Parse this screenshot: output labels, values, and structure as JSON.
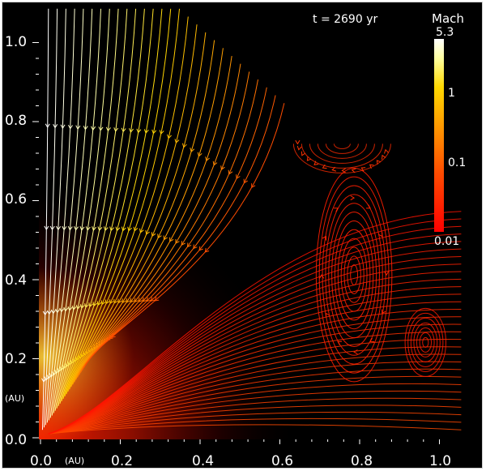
{
  "time_label": "t = 2690 yr",
  "colorbar": {
    "title": "Mach",
    "max_label": "5.3",
    "tick_labels": [
      "1",
      "0.1",
      "0.01"
    ],
    "colors": [
      "#ff0000",
      "#ff4a00",
      "#ff9a00",
      "#ffd800",
      "#ffffa0",
      "#ffffff"
    ]
  },
  "axes": {
    "x_ticks": [
      "0.0",
      "0.2",
      "0.4",
      "0.6",
      "0.8",
      "1.0"
    ],
    "y_ticks": [
      "0.0",
      "0.2",
      "0.4",
      "0.6",
      "0.8",
      "1.0"
    ],
    "x_unit": "(AU)",
    "y_unit": "(AU)"
  },
  "colors": {
    "background": "#000000",
    "flow_hot": "#ff0000",
    "flow_cool": "#ffffff"
  }
}
